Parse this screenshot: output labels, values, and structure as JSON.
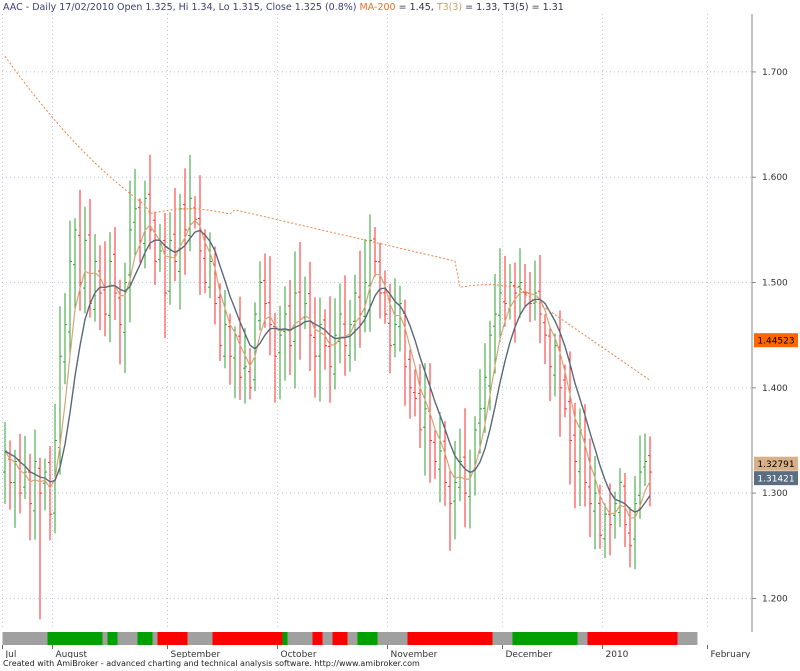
{
  "header": {
    "symbol_info": "AAC - Daily 17/02/2010 Open 1.325, Hi 1.34, Lo 1.315, Close 1.325 (0.8%)",
    "ma_label": "MA-200",
    "ma_value": " = 1.45,",
    "t3a_label": "T3(3)",
    "t3a_value": " = 1.33,",
    "t3b_label": "T3(5)",
    "t3b_value": " = 1.31"
  },
  "footer": {
    "text": "Created with AmiBroker - advanced charting and technical analysis software. http://www.amibroker.com"
  },
  "colors": {
    "up": "#2ea02e",
    "down": "#ff2a2a",
    "ma": "#f08040",
    "t3a": "#d4a57a",
    "t3b": "#5a6878",
    "grid": "#b8c8d8",
    "axis": "#888888",
    "band_green": "#00a000",
    "band_red": "#ff0000",
    "band_gray": "#a0a0a0"
  },
  "chart_data": {
    "type": "ohlc",
    "ylim": [
      1.17,
      1.755
    ],
    "ytick_labels": [
      "1.200",
      "1.300",
      "1.400",
      "1.500",
      "1.600",
      "1.700"
    ],
    "ytick_values": [
      1.2,
      1.3,
      1.4,
      1.5,
      1.6,
      1.7
    ],
    "month_labels": [
      {
        "bar": 0,
        "label": "Jul"
      },
      {
        "bar": 10,
        "label": "August"
      },
      {
        "bar": 33,
        "label": "September"
      },
      {
        "bar": 55,
        "label": "October"
      },
      {
        "bar": 77,
        "label": "November"
      },
      {
        "bar": 100,
        "label": "December"
      },
      {
        "bar": 120,
        "label": "2010"
      },
      {
        "bar": 141,
        "label": "February"
      }
    ],
    "closes": [
      1.34,
      1.31,
      1.33,
      1.3,
      1.32,
      1.29,
      1.33,
      1.3,
      1.32,
      1.28,
      1.35,
      1.43,
      1.46,
      1.52,
      1.55,
      1.5,
      1.54,
      1.48,
      1.52,
      1.49,
      1.47,
      1.52,
      1.49,
      1.46,
      1.5,
      1.55,
      1.57,
      1.54,
      1.58,
      1.55,
      1.52,
      1.53,
      1.49,
      1.54,
      1.52,
      1.57,
      1.55,
      1.58,
      1.56,
      1.53,
      1.5,
      1.52,
      1.48,
      1.44,
      1.46,
      1.43,
      1.45,
      1.41,
      1.42,
      1.4,
      1.47,
      1.5,
      1.48,
      1.46,
      1.43,
      1.45,
      1.47,
      1.44,
      1.49,
      1.46,
      1.48,
      1.45,
      1.43,
      1.46,
      1.44,
      1.42,
      1.45,
      1.47,
      1.44,
      1.46,
      1.49,
      1.47,
      1.5,
      1.54,
      1.52,
      1.49,
      1.47,
      1.44,
      1.46,
      1.48,
      1.42,
      1.4,
      1.39,
      1.36,
      1.38,
      1.35,
      1.33,
      1.34,
      1.31,
      1.29,
      1.31,
      1.33,
      1.3,
      1.32,
      1.36,
      1.38,
      1.41,
      1.45,
      1.47,
      1.49,
      1.48,
      1.5,
      1.49,
      1.5,
      1.49,
      1.48,
      1.49,
      1.47,
      1.45,
      1.42,
      1.44,
      1.4,
      1.38,
      1.35,
      1.33,
      1.36,
      1.31,
      1.29,
      1.3,
      1.26,
      1.28,
      1.27,
      1.29,
      1.31,
      1.27,
      1.25,
      1.29,
      1.32,
      1.33,
      1.32
    ],
    "bands": [
      {
        "from": 0,
        "to": 9,
        "color": "gray"
      },
      {
        "from": 9,
        "to": 20,
        "color": "green"
      },
      {
        "from": 20,
        "to": 21,
        "color": "gray"
      },
      {
        "from": 21,
        "to": 23,
        "color": "green"
      },
      {
        "from": 23,
        "to": 27,
        "color": "gray"
      },
      {
        "from": 27,
        "to": 30,
        "color": "green"
      },
      {
        "from": 30,
        "to": 31,
        "color": "gray"
      },
      {
        "from": 31,
        "to": 37,
        "color": "red"
      },
      {
        "from": 37,
        "to": 42,
        "color": "gray"
      },
      {
        "from": 42,
        "to": 56,
        "color": "red"
      },
      {
        "from": 56,
        "to": 57,
        "color": "green"
      },
      {
        "from": 57,
        "to": 62,
        "color": "gray"
      },
      {
        "from": 62,
        "to": 64,
        "color": "red"
      },
      {
        "from": 64,
        "to": 66,
        "color": "gray"
      },
      {
        "from": 66,
        "to": 69,
        "color": "red"
      },
      {
        "from": 69,
        "to": 71,
        "color": "gray"
      },
      {
        "from": 71,
        "to": 75,
        "color": "green"
      },
      {
        "from": 75,
        "to": 81,
        "color": "gray"
      },
      {
        "from": 81,
        "to": 98,
        "color": "red"
      },
      {
        "from": 98,
        "to": 102,
        "color": "gray"
      },
      {
        "from": 102,
        "to": 115,
        "color": "green"
      },
      {
        "from": 115,
        "to": 117,
        "color": "gray"
      },
      {
        "from": 117,
        "to": 135,
        "color": "red"
      },
      {
        "from": 135,
        "to": 139,
        "color": "gray"
      }
    ],
    "last_values": [
      {
        "label": "1.44523",
        "value": 1.44523,
        "color": "#ff6600",
        "text_color": "#000000"
      },
      {
        "label": "1.32791",
        "value": 1.32791,
        "color": "#d8b088",
        "text_color": "#000000"
      },
      {
        "label": "1.31421",
        "value": 1.31421,
        "color": "#5a6e82",
        "text_color": "#ffffff"
      }
    ]
  }
}
